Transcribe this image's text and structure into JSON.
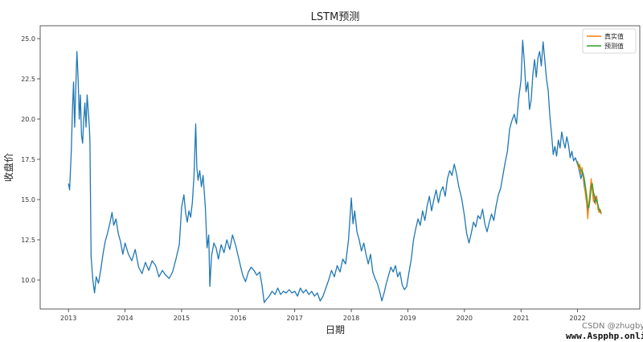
{
  "chart_data": {
    "type": "line",
    "title": "LSTM预测",
    "xlabel": "日期",
    "ylabel": "收盘价",
    "x_ticks": [
      "2013",
      "2014",
      "2015",
      "2016",
      "2017",
      "2018",
      "2019",
      "2020",
      "2021",
      "2022"
    ],
    "y_ticks": [
      "10.0",
      "12.5",
      "15.0",
      "17.5",
      "20.0",
      "22.5",
      "25.0"
    ],
    "xlim": [
      2012.5,
      2023.1
    ],
    "ylim": [
      8.2,
      25.8
    ],
    "grid": false,
    "legend_position": "top-right",
    "series": [
      {
        "name": "",
        "color": "#1f77b4",
        "points": [
          [
            2013.0,
            16.0
          ],
          [
            2013.02,
            15.6
          ],
          [
            2013.05,
            18.0
          ],
          [
            2013.07,
            20.5
          ],
          [
            2013.09,
            22.3
          ],
          [
            2013.11,
            19.5
          ],
          [
            2013.13,
            22.0
          ],
          [
            2013.15,
            24.2
          ],
          [
            2013.17,
            22.5
          ],
          [
            2013.19,
            20.0
          ],
          [
            2013.21,
            21.5
          ],
          [
            2013.23,
            19.0
          ],
          [
            2013.25,
            18.5
          ],
          [
            2013.27,
            20.0
          ],
          [
            2013.29,
            21.0
          ],
          [
            2013.31,
            19.5
          ],
          [
            2013.33,
            21.5
          ],
          [
            2013.35,
            20.5
          ],
          [
            2013.37,
            19.5
          ],
          [
            2013.38,
            18.6
          ],
          [
            2013.4,
            11.5
          ],
          [
            2013.43,
            10.0
          ],
          [
            2013.46,
            9.2
          ],
          [
            2013.49,
            10.2
          ],
          [
            2013.53,
            9.8
          ],
          [
            2013.57,
            10.6
          ],
          [
            2013.61,
            11.6
          ],
          [
            2013.65,
            12.4
          ],
          [
            2013.69,
            12.9
          ],
          [
            2013.73,
            13.5
          ],
          [
            2013.77,
            14.2
          ],
          [
            2013.8,
            13.4
          ],
          [
            2013.84,
            13.8
          ],
          [
            2013.88,
            12.9
          ],
          [
            2013.92,
            12.4
          ],
          [
            2013.96,
            11.6
          ],
          [
            2014.0,
            12.3
          ],
          [
            2014.06,
            11.6
          ],
          [
            2014.12,
            11.2
          ],
          [
            2014.18,
            11.9
          ],
          [
            2014.24,
            10.8
          ],
          [
            2014.3,
            10.4
          ],
          [
            2014.36,
            11.1
          ],
          [
            2014.42,
            10.6
          ],
          [
            2014.48,
            11.2
          ],
          [
            2014.54,
            10.9
          ],
          [
            2014.6,
            10.2
          ],
          [
            2014.66,
            10.6
          ],
          [
            2014.72,
            10.3
          ],
          [
            2014.78,
            10.1
          ],
          [
            2014.84,
            10.5
          ],
          [
            2014.9,
            11.3
          ],
          [
            2014.96,
            12.2
          ],
          [
            2015.0,
            14.5
          ],
          [
            2015.04,
            15.3
          ],
          [
            2015.07,
            14.2
          ],
          [
            2015.1,
            13.6
          ],
          [
            2015.13,
            14.3
          ],
          [
            2015.16,
            13.9
          ],
          [
            2015.19,
            14.8
          ],
          [
            2015.22,
            16.5
          ],
          [
            2015.25,
            19.7
          ],
          [
            2015.27,
            17.0
          ],
          [
            2015.29,
            16.2
          ],
          [
            2015.32,
            16.8
          ],
          [
            2015.35,
            15.8
          ],
          [
            2015.38,
            16.5
          ],
          [
            2015.42,
            14.5
          ],
          [
            2015.45,
            12.0
          ],
          [
            2015.48,
            12.8
          ],
          [
            2015.5,
            9.6
          ],
          [
            2015.53,
            11.5
          ],
          [
            2015.57,
            12.3
          ],
          [
            2015.61,
            12.0
          ],
          [
            2015.65,
            11.3
          ],
          [
            2015.7,
            12.2
          ],
          [
            2015.75,
            11.7
          ],
          [
            2015.8,
            12.5
          ],
          [
            2015.85,
            11.9
          ],
          [
            2015.9,
            12.8
          ],
          [
            2015.96,
            12.1
          ],
          [
            2016.0,
            11.5
          ],
          [
            2016.04,
            10.9
          ],
          [
            2016.08,
            10.3
          ],
          [
            2016.13,
            9.9
          ],
          [
            2016.18,
            10.5
          ],
          [
            2016.23,
            10.8
          ],
          [
            2016.28,
            10.6
          ],
          [
            2016.33,
            10.3
          ],
          [
            2016.38,
            10.5
          ],
          [
            2016.42,
            9.7
          ],
          [
            2016.46,
            8.6
          ],
          [
            2016.5,
            8.8
          ],
          [
            2016.55,
            9.0
          ],
          [
            2016.6,
            9.3
          ],
          [
            2016.65,
            9.1
          ],
          [
            2016.7,
            9.5
          ],
          [
            2016.75,
            9.1
          ],
          [
            2016.8,
            9.3
          ],
          [
            2016.85,
            9.2
          ],
          [
            2016.9,
            9.4
          ],
          [
            2016.95,
            9.2
          ],
          [
            2017.0,
            9.3
          ],
          [
            2017.05,
            9.0
          ],
          [
            2017.1,
            9.5
          ],
          [
            2017.15,
            9.2
          ],
          [
            2017.2,
            9.4
          ],
          [
            2017.25,
            9.1
          ],
          [
            2017.3,
            9.3
          ],
          [
            2017.35,
            9.0
          ],
          [
            2017.4,
            9.2
          ],
          [
            2017.45,
            8.7
          ],
          [
            2017.5,
            9.0
          ],
          [
            2017.55,
            9.5
          ],
          [
            2017.6,
            10.0
          ],
          [
            2017.65,
            10.6
          ],
          [
            2017.7,
            10.2
          ],
          [
            2017.75,
            10.9
          ],
          [
            2017.8,
            10.5
          ],
          [
            2017.85,
            11.3
          ],
          [
            2017.9,
            11.0
          ],
          [
            2017.95,
            12.5
          ],
          [
            2018.0,
            15.1
          ],
          [
            2018.03,
            13.5
          ],
          [
            2018.06,
            14.3
          ],
          [
            2018.1,
            13.0
          ],
          [
            2018.14,
            12.5
          ],
          [
            2018.18,
            11.8
          ],
          [
            2018.22,
            12.3
          ],
          [
            2018.26,
            11.6
          ],
          [
            2018.3,
            11.0
          ],
          [
            2018.34,
            11.6
          ],
          [
            2018.38,
            10.5
          ],
          [
            2018.42,
            10.1
          ],
          [
            2018.46,
            9.8
          ],
          [
            2018.5,
            9.3
          ],
          [
            2018.54,
            8.7
          ],
          [
            2018.58,
            9.2
          ],
          [
            2018.62,
            9.8
          ],
          [
            2018.66,
            10.3
          ],
          [
            2018.7,
            10.8
          ],
          [
            2018.74,
            10.5
          ],
          [
            2018.78,
            10.9
          ],
          [
            2018.82,
            10.2
          ],
          [
            2018.86,
            10.5
          ],
          [
            2018.9,
            9.7
          ],
          [
            2018.94,
            9.4
          ],
          [
            2018.98,
            9.6
          ],
          [
            2019.02,
            10.5
          ],
          [
            2019.06,
            11.3
          ],
          [
            2019.1,
            12.5
          ],
          [
            2019.14,
            13.2
          ],
          [
            2019.18,
            13.8
          ],
          [
            2019.22,
            13.4
          ],
          [
            2019.26,
            14.3
          ],
          [
            2019.3,
            13.7
          ],
          [
            2019.34,
            14.6
          ],
          [
            2019.38,
            15.2
          ],
          [
            2019.42,
            14.3
          ],
          [
            2019.46,
            15.0
          ],
          [
            2019.5,
            15.6
          ],
          [
            2019.54,
            14.8
          ],
          [
            2019.58,
            15.5
          ],
          [
            2019.62,
            15.8
          ],
          [
            2019.66,
            15.2
          ],
          [
            2019.7,
            16.3
          ],
          [
            2019.74,
            16.8
          ],
          [
            2019.78,
            16.5
          ],
          [
            2019.82,
            17.2
          ],
          [
            2019.86,
            16.6
          ],
          [
            2019.9,
            15.8
          ],
          [
            2019.95,
            15.1
          ],
          [
            2020.0,
            14.0
          ],
          [
            2020.04,
            12.9
          ],
          [
            2020.08,
            12.3
          ],
          [
            2020.12,
            12.9
          ],
          [
            2020.16,
            13.6
          ],
          [
            2020.2,
            13.3
          ],
          [
            2020.24,
            14.0
          ],
          [
            2020.28,
            13.8
          ],
          [
            2020.32,
            14.4
          ],
          [
            2020.36,
            13.5
          ],
          [
            2020.4,
            13.0
          ],
          [
            2020.44,
            13.6
          ],
          [
            2020.48,
            14.1
          ],
          [
            2020.52,
            13.7
          ],
          [
            2020.56,
            14.6
          ],
          [
            2020.6,
            15.3
          ],
          [
            2020.64,
            15.7
          ],
          [
            2020.68,
            16.5
          ],
          [
            2020.72,
            17.3
          ],
          [
            2020.76,
            18.0
          ],
          [
            2020.8,
            19.4
          ],
          [
            2020.84,
            19.9
          ],
          [
            2020.88,
            20.3
          ],
          [
            2020.92,
            19.7
          ],
          [
            2020.96,
            21.3
          ],
          [
            2021.0,
            22.4
          ],
          [
            2021.03,
            24.9
          ],
          [
            2021.06,
            23.5
          ],
          [
            2021.09,
            21.7
          ],
          [
            2021.12,
            22.3
          ],
          [
            2021.15,
            20.6
          ],
          [
            2021.18,
            21.2
          ],
          [
            2021.21,
            22.8
          ],
          [
            2021.24,
            23.7
          ],
          [
            2021.27,
            22.6
          ],
          [
            2021.3,
            23.8
          ],
          [
            2021.33,
            24.2
          ],
          [
            2021.36,
            23.3
          ],
          [
            2021.39,
            24.8
          ],
          [
            2021.42,
            23.7
          ],
          [
            2021.45,
            22.5
          ],
          [
            2021.48,
            21.8
          ],
          [
            2021.51,
            20.2
          ],
          [
            2021.54,
            19.1
          ],
          [
            2021.57,
            17.8
          ],
          [
            2021.6,
            18.3
          ],
          [
            2021.63,
            17.7
          ],
          [
            2021.66,
            18.7
          ],
          [
            2021.69,
            18.2
          ],
          [
            2021.72,
            19.2
          ],
          [
            2021.75,
            18.6
          ],
          [
            2021.78,
            18.2
          ],
          [
            2021.81,
            18.9
          ],
          [
            2021.84,
            18.4
          ],
          [
            2021.87,
            17.6
          ],
          [
            2021.9,
            18.0
          ],
          [
            2021.93,
            17.4
          ],
          [
            2021.96,
            17.6
          ],
          [
            2022.0,
            17.2
          ],
          [
            2022.03,
            16.8
          ],
          [
            2022.06,
            16.3
          ],
          [
            2022.09,
            16.7
          ],
          [
            2022.12,
            15.8
          ],
          [
            2022.15,
            15.2
          ],
          [
            2022.18,
            14.3
          ],
          [
            2022.21,
            15.0
          ],
          [
            2022.24,
            16.0
          ],
          [
            2022.27,
            15.4
          ],
          [
            2022.3,
            14.8
          ],
          [
            2022.33,
            15.2
          ],
          [
            2022.36,
            14.6
          ],
          [
            2022.39,
            14.3
          ],
          [
            2022.42,
            14.1
          ]
        ]
      },
      {
        "name": "真实值",
        "color": "#ff7f0e",
        "points": [
          [
            2022.0,
            17.4
          ],
          [
            2022.02,
            16.9
          ],
          [
            2022.04,
            17.2
          ],
          [
            2022.06,
            16.6
          ],
          [
            2022.08,
            17.0
          ],
          [
            2022.1,
            16.4
          ],
          [
            2022.12,
            16.1
          ],
          [
            2022.14,
            15.3
          ],
          [
            2022.16,
            14.8
          ],
          [
            2022.18,
            13.8
          ],
          [
            2022.2,
            14.8
          ],
          [
            2022.22,
            15.5
          ],
          [
            2022.24,
            16.3
          ],
          [
            2022.26,
            15.6
          ],
          [
            2022.28,
            14.9
          ],
          [
            2022.3,
            15.3
          ],
          [
            2022.32,
            14.7
          ],
          [
            2022.34,
            15.2
          ],
          [
            2022.36,
            14.4
          ],
          [
            2022.38,
            14.2
          ],
          [
            2022.4,
            14.4
          ],
          [
            2022.42,
            14.1
          ]
        ]
      },
      {
        "name": "预测值",
        "color": "#2ca02c",
        "points": [
          [
            2022.0,
            17.3
          ],
          [
            2022.02,
            17.1
          ],
          [
            2022.04,
            17.0
          ],
          [
            2022.06,
            16.8
          ],
          [
            2022.08,
            16.8
          ],
          [
            2022.1,
            16.6
          ],
          [
            2022.12,
            16.3
          ],
          [
            2022.14,
            15.8
          ],
          [
            2022.16,
            15.3
          ],
          [
            2022.18,
            14.6
          ],
          [
            2022.2,
            14.5
          ],
          [
            2022.22,
            15.0
          ],
          [
            2022.24,
            15.8
          ],
          [
            2022.26,
            16.0
          ],
          [
            2022.28,
            15.5
          ],
          [
            2022.3,
            15.2
          ],
          [
            2022.32,
            14.9
          ],
          [
            2022.34,
            15.0
          ],
          [
            2022.36,
            14.7
          ],
          [
            2022.38,
            14.4
          ],
          [
            2022.4,
            14.3
          ],
          [
            2022.42,
            14.2
          ]
        ]
      }
    ]
  },
  "watermark": {
    "csdn": "CSDN @zhugby",
    "site": "www.Aspphp.online"
  }
}
